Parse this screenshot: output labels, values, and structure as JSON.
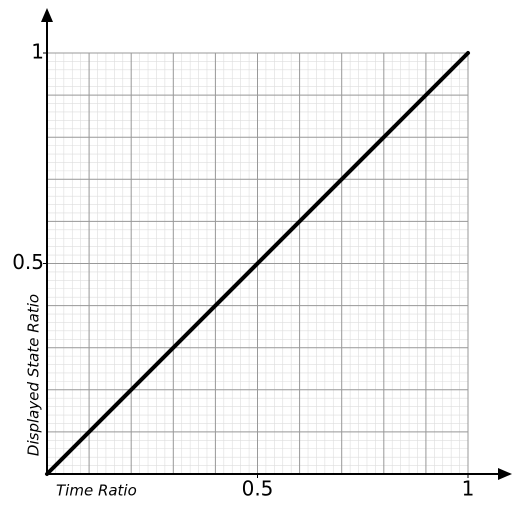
{
  "chart_data": {
    "type": "line",
    "x_label": "Time Ratio",
    "y_label": "Displayed State Ratio",
    "x": [
      0,
      1
    ],
    "series": [
      {
        "color": "#000000",
        "values": [
          0,
          1
        ]
      }
    ],
    "xlim": [
      0,
      1
    ],
    "ylim": [
      0,
      1
    ],
    "xticks": [
      0.5,
      1
    ],
    "yticks": [
      0.5,
      1
    ],
    "grid": true,
    "grid_major_step": 0.1,
    "grid_minor_step": 0.02
  }
}
